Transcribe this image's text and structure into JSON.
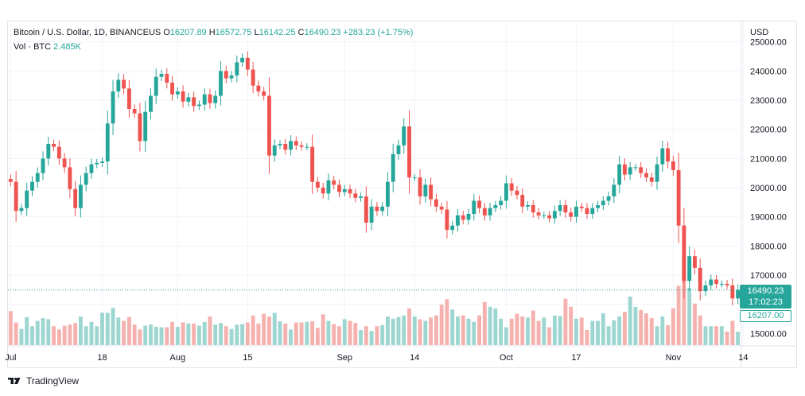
{
  "legend": {
    "symbol": "Bitcoin / U.S. Dollar, 1D, BINANCEUS",
    "open_label": "O",
    "open": "16207.89",
    "high_label": "H",
    "high": "16572.75",
    "low_label": "L",
    "low": "16142.25",
    "close_label": "C",
    "close": "16490.23",
    "change": "+283.23 (+1.75%)",
    "vol_label": "Vol · BTC",
    "vol": "2.485K"
  },
  "tags": {
    "last_price": "16490.23",
    "countdown": "17:02:23",
    "open_price": "16207.00"
  },
  "footer": {
    "brand": "TradingView"
  },
  "colors": {
    "up": "#26a69a",
    "down": "#ef5350",
    "up_vol": "#9dd6d0",
    "down_vol": "#f5b1ae",
    "grid": "#f0f3fa"
  },
  "chart_data": {
    "type": "candlestick",
    "title": "Bitcoin / U.S. Dollar, 1D, BINANCEUS",
    "currency_label": "USD",
    "y_ticks": [
      15000,
      16000,
      17000,
      18000,
      19000,
      20000,
      21000,
      22000,
      23000,
      24000,
      25000
    ],
    "y_tick_labels": [
      "15000.00",
      "16000.00",
      "17000.00",
      "18000.00",
      "19000.00",
      "20000.00",
      "21000.00",
      "22000.00",
      "23000.00",
      "24000.00",
      "25000.00"
    ],
    "ylim": [
      14600,
      25700
    ],
    "x_tick_labels": [
      "Jul",
      "18",
      "Aug",
      "15",
      "Sep",
      "14",
      "Oct",
      "17",
      "Nov",
      "14"
    ],
    "x_tick_index": [
      0,
      17,
      31,
      44,
      62,
      75,
      92,
      105,
      123,
      136
    ],
    "last_price": 16490.23,
    "close_series": [
      20200,
      19200,
      19300,
      19900,
      20200,
      20500,
      21000,
      21500,
      21400,
      21000,
      20700,
      19950,
      19300,
      20100,
      20500,
      20800,
      20850,
      20900,
      22200,
      23300,
      23700,
      23400,
      22700,
      22550,
      21600,
      22600,
      23150,
      23800,
      23900,
      23600,
      23200,
      23300,
      22950,
      23100,
      22800,
      22850,
      23200,
      22900,
      23150,
      24000,
      23750,
      23850,
      24300,
      24450,
      24050,
      23500,
      23300,
      23150,
      21100,
      21450,
      21500,
      21300,
      21600,
      21450,
      21400,
      21400,
      20200,
      20000,
      19800,
      20250,
      20100,
      19850,
      19950,
      19800,
      19650,
      19700,
      18800,
      19350,
      19200,
      19350,
      20200,
      21150,
      21450,
      22100,
      20350,
      20350,
      19700,
      20100,
      19600,
      19350,
      19250,
      18550,
      18700,
      19050,
      18900,
      19100,
      19550,
      19300,
      19050,
      19300,
      19400,
      19550,
      20150,
      19900,
      19750,
      19350,
      19400,
      19150,
      19050,
      19050,
      18950,
      19200,
      19400,
      19150,
      19000,
      19350,
      19300,
      19100,
      19300,
      19400,
      19550,
      19700,
      20100,
      20800,
      20450,
      20700,
      20700,
      20500,
      20350,
      20200,
      20800,
      21350,
      20900,
      20600,
      18700,
      16800,
      17650,
      17250,
      16450,
      16650,
      16850,
      16700,
      16700,
      16650,
      16200,
      16490.23
    ],
    "volume_series": [
      6.3,
      4.2,
      3.0,
      5.2,
      3.5,
      4.5,
      5.0,
      4.8,
      3.5,
      2.9,
      3.6,
      3.8,
      4.1,
      5.3,
      3.5,
      4.3,
      3.5,
      6.0,
      6.0,
      6.9,
      5.1,
      4.5,
      5.2,
      3.8,
      2.9,
      3.6,
      3.8,
      3.4,
      3.3,
      3.3,
      4.3,
      3.4,
      4.2,
      4.0,
      4.0,
      3.6,
      4.3,
      5.3,
      3.8,
      4.1,
      3.5,
      3.0,
      3.8,
      3.9,
      4.2,
      5.5,
      4.0,
      5.8,
      5.3,
      6.0,
      4.4,
      4.0,
      2.9,
      4.2,
      4.2,
      4.3,
      4.4,
      3.2,
      5.7,
      4.5,
      3.9,
      3.5,
      4.8,
      4.5,
      4.1,
      2.8,
      3.5,
      2.6,
      3.5,
      3.7,
      5.3,
      4.9,
      5.2,
      5.5,
      6.8,
      5.3,
      4.8,
      4.5,
      5.1,
      5.5,
      7.5,
      8.5,
      6.6,
      5.3,
      5.5,
      4.9,
      4.3,
      5.5,
      8.0,
      7.1,
      6.8,
      4.9,
      3.3,
      4.9,
      5.8,
      5.3,
      5.1,
      6.4,
      4.5,
      5.1,
      3.3,
      5.5,
      5.4,
      8.6,
      7.1,
      4.9,
      5.1,
      2.8,
      4.5,
      4.5,
      5.9,
      3.5,
      4.6,
      5.3,
      6.2,
      9.0,
      7.1,
      6.5,
      5.9,
      5.0,
      3.5,
      5.3,
      3.7,
      6.8,
      11.0,
      14.0,
      10.6,
      7.7,
      5.5,
      3.5,
      3.5,
      3.5,
      3.5,
      2.5,
      4.5,
      2.49
    ]
  }
}
